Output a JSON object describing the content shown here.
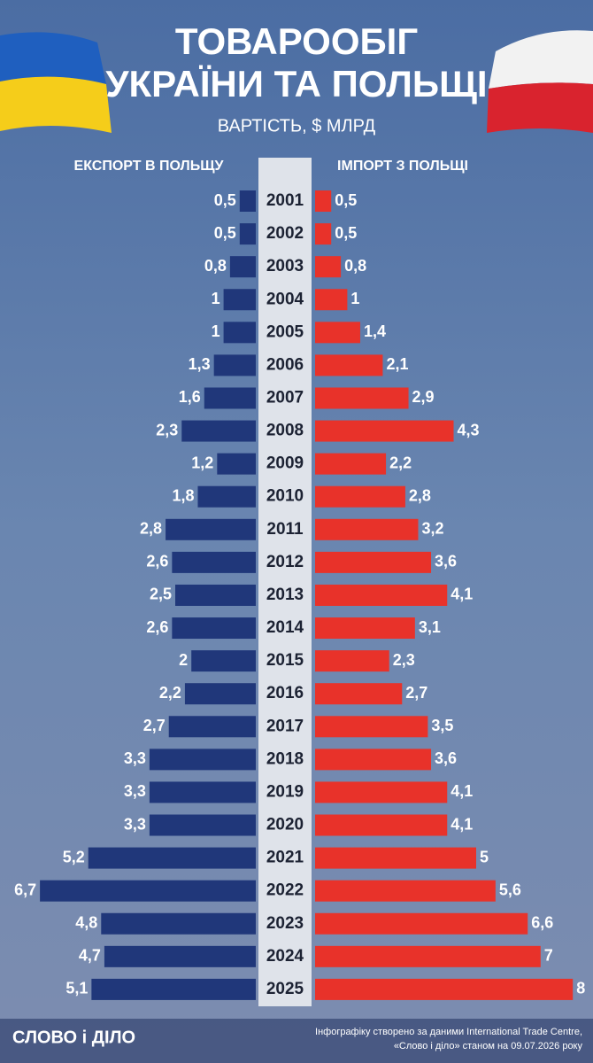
{
  "chart_data": {
    "type": "butterfly-bar",
    "title": [
      "ТОВАРООБІГ",
      "УКРАЇНИ ТА ПОЛЬЩІ"
    ],
    "subtitle": "ВАРТІСТЬ, $ МЛРД",
    "categories": [
      "2001",
      "2002",
      "2003",
      "2004",
      "2005",
      "2006",
      "2007",
      "2008",
      "2009",
      "2010",
      "2011",
      "2012",
      "2013",
      "2014",
      "2015",
      "2016",
      "2017",
      "2018",
      "2019",
      "2020",
      "2021",
      "2022",
      "2023",
      "2024",
      "2025"
    ],
    "series": [
      {
        "name": "ЕКСПОРТ В ПОЛЬЩУ",
        "color": "#20377a",
        "values": [
          0.5,
          0.5,
          0.8,
          1,
          1,
          1.3,
          1.6,
          2.3,
          1.2,
          1.8,
          2.8,
          2.6,
          2.5,
          2.6,
          2,
          2.2,
          2.7,
          3.3,
          3.3,
          3.3,
          5.2,
          6.7,
          4.8,
          4.7,
          5.1
        ],
        "value_labels": [
          "0,5",
          "0,5",
          "0,8",
          "1",
          "1",
          "1,3",
          "1,6",
          "2,3",
          "1,2",
          "1,8",
          "2,8",
          "2,6",
          "2,5",
          "2,6",
          "2",
          "2,2",
          "2,7",
          "3,3",
          "3,3",
          "3,3",
          "5,2",
          "6,7",
          "4,8",
          "4,7",
          "5,1"
        ]
      },
      {
        "name": "ІМПОРТ З ПОЛЬЩІ",
        "color": "#e8322a",
        "values": [
          0.5,
          0.5,
          0.8,
          1,
          1.4,
          2.1,
          2.9,
          4.3,
          2.2,
          2.8,
          3.2,
          3.6,
          4.1,
          3.1,
          2.3,
          2.7,
          3.5,
          3.6,
          4.1,
          4.1,
          5,
          5.6,
          6.6,
          7,
          8
        ],
        "value_labels": [
          "0,5",
          "0,5",
          "0,8",
          "1",
          "1,4",
          "2,1",
          "2,9",
          "4,3",
          "2,2",
          "2,8",
          "3,2",
          "3,6",
          "4,1",
          "3,1",
          "2,3",
          "2,7",
          "3,5",
          "3,6",
          "4,1",
          "4,1",
          "5",
          "5,6",
          "6,6",
          "7",
          "8"
        ]
      }
    ]
  },
  "footer": {
    "logo": "СЛОВО і ДІЛО",
    "source": [
      "Інфографіку створено за даними International Trade Centre,",
      "«Слово і діло» станом на 09.07.2026 року"
    ]
  }
}
